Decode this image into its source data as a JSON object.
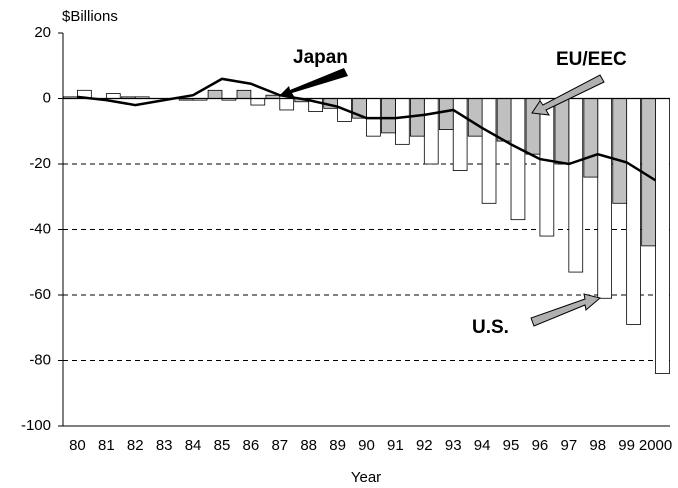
{
  "chart_data": {
    "type": "bar",
    "y_label": "$Billions",
    "x_label": "Year",
    "categories": [
      "80",
      "81",
      "82",
      "83",
      "84",
      "85",
      "86",
      "87",
      "88",
      "89",
      "90",
      "91",
      "92",
      "93",
      "94",
      "95",
      "96",
      "97",
      "98",
      "99",
      "2000"
    ],
    "series": [
      {
        "name": "U.S.",
        "color": "#ffffff",
        "values": [
          2.5,
          1.5,
          0.5,
          0,
          -0.5,
          -0.5,
          -2,
          -3.5,
          -4,
          -7,
          -11.5,
          -14,
          -20,
          -22,
          -32,
          -37,
          -42,
          -53,
          -61,
          -69,
          -84
        ]
      },
      {
        "name": "EU/EEC",
        "color": "#c0c0c0",
        "values": [
          0.5,
          0,
          0.5,
          0,
          -0.5,
          2.5,
          2.5,
          1,
          -1,
          -3,
          -6,
          -10.5,
          -11.5,
          -9.5,
          -11.5,
          -13,
          -17,
          -20,
          -24,
          -32,
          -45
        ]
      },
      {
        "name": "Japan",
        "type": "line",
        "color": "#000000",
        "values": [
          0.5,
          -0.5,
          -2,
          -0.5,
          1,
          6,
          4.5,
          1,
          -0.5,
          -2.5,
          -6,
          -6,
          -5,
          -3.5,
          -9,
          -14,
          -18.5,
          -20,
          -17,
          -19.5,
          -25
        ]
      }
    ],
    "ylim": [
      -100,
      20
    ],
    "yticks": [
      20,
      0,
      -20,
      -40,
      -60,
      -80,
      -100
    ],
    "grid": true
  }
}
